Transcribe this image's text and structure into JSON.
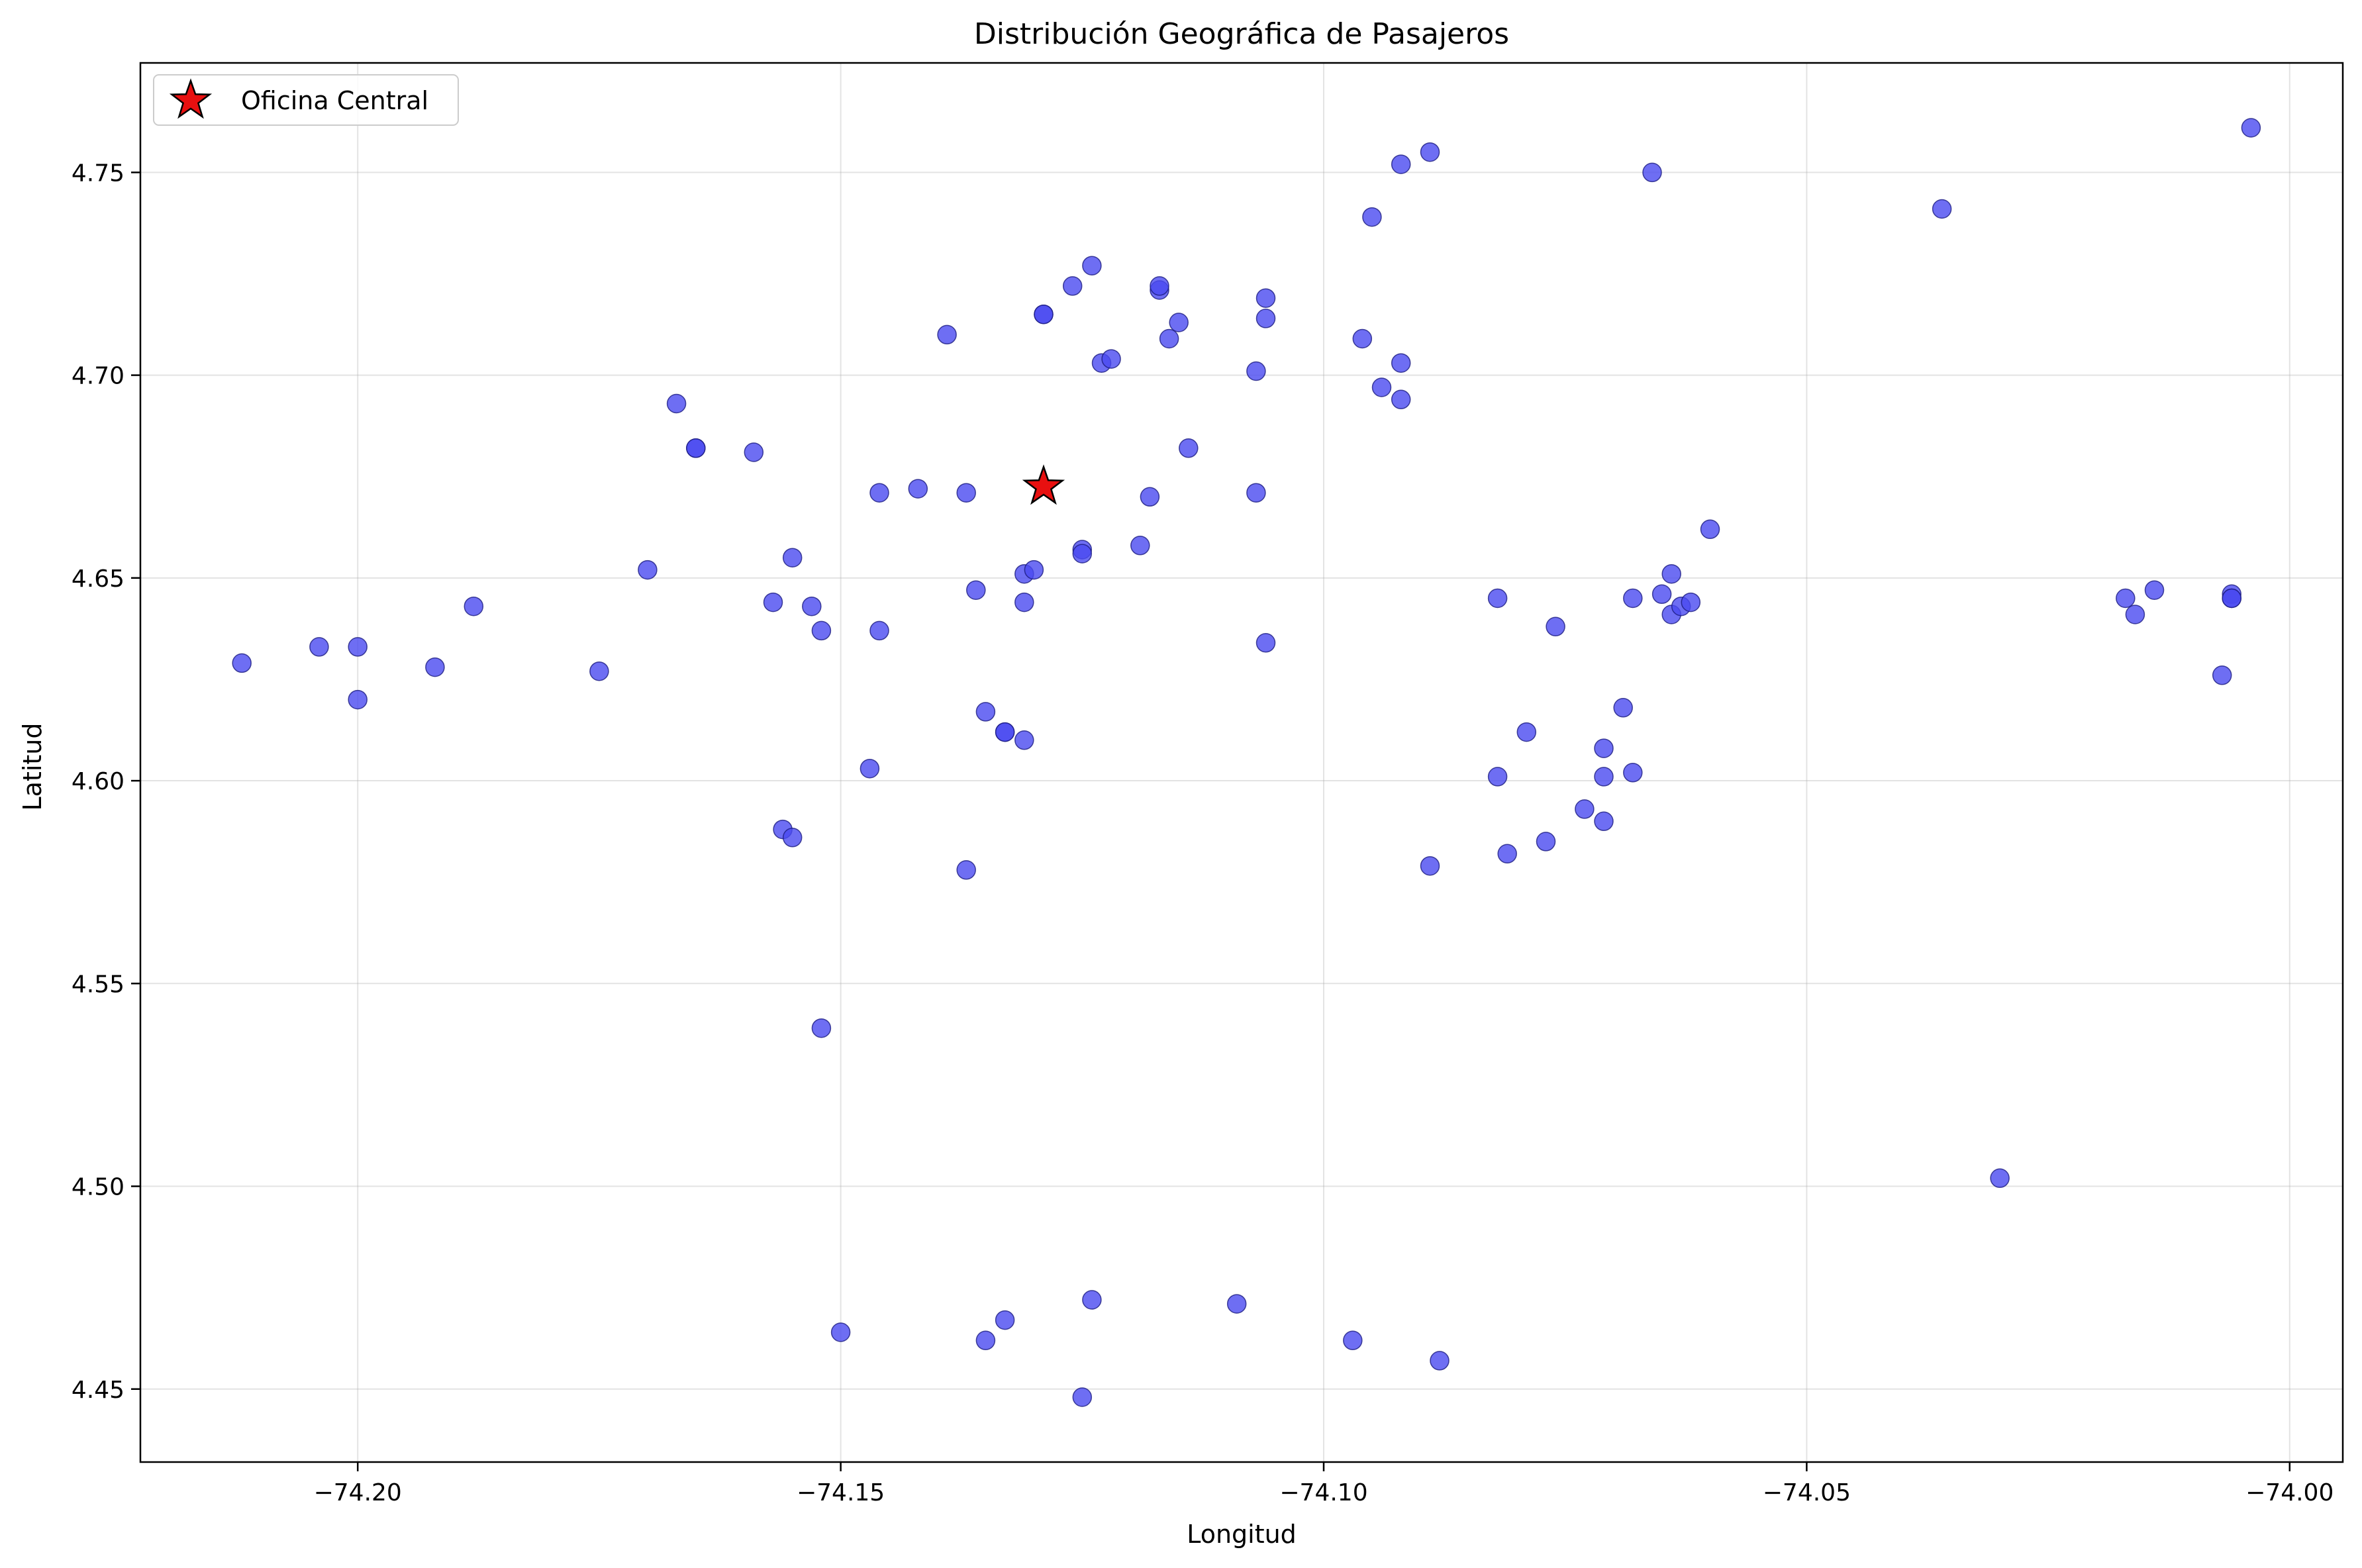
{
  "chart_data": {
    "type": "scatter",
    "title": "Distribución Geográfica de Pasajeros",
    "xlabel": "Longitud",
    "ylabel": "Latitud",
    "xlim": [
      -74.2225,
      -73.9945
    ],
    "ylim": [
      4.432,
      4.777
    ],
    "xticks": [
      -74.2,
      -74.15,
      -74.1,
      -74.05,
      -74.0
    ],
    "xtick_labels": [
      "−74.20",
      "−74.15",
      "−74.10",
      "−74.05",
      "−74.00"
    ],
    "yticks": [
      4.45,
      4.5,
      4.55,
      4.6,
      4.65,
      4.7,
      4.75
    ],
    "ytick_labels": [
      "4.45",
      "4.50",
      "4.55",
      "4.60",
      "4.65",
      "4.70",
      "4.75"
    ],
    "grid": true,
    "legend": {
      "position": "top-left",
      "entries": [
        "Oficina Central"
      ]
    },
    "colors": {
      "passenger": "#4a4af0",
      "passenger_edge": "#1a1a80",
      "office": "#e81010",
      "office_edge": "#000000"
    },
    "office": {
      "name": "Oficina Central",
      "x": -74.129,
      "y": 4.6725,
      "marker": "star"
    },
    "series": [
      {
        "marker": "circle",
        "points": [
          [
            -74.212,
            4.629
          ],
          [
            -74.204,
            4.633
          ],
          [
            -74.2,
            4.633
          ],
          [
            -74.2,
            4.62
          ],
          [
            -74.192,
            4.628
          ],
          [
            -74.188,
            4.643
          ],
          [
            -74.175,
            4.627
          ],
          [
            -74.17,
            4.652
          ],
          [
            -74.167,
            4.693
          ],
          [
            -74.165,
            4.682
          ],
          [
            -74.165,
            4.682
          ],
          [
            -74.159,
            4.681
          ],
          [
            -74.157,
            4.644
          ],
          [
            -74.155,
            4.655
          ],
          [
            -74.153,
            4.643
          ],
          [
            -74.152,
            4.637
          ],
          [
            -74.156,
            4.588
          ],
          [
            -74.155,
            4.586
          ],
          [
            -74.152,
            4.539
          ],
          [
            -74.15,
            4.464
          ],
          [
            -74.146,
            4.671
          ],
          [
            -74.146,
            4.637
          ],
          [
            -74.147,
            4.603
          ],
          [
            -74.142,
            4.672
          ],
          [
            -74.139,
            4.71
          ],
          [
            -74.137,
            4.671
          ],
          [
            -74.136,
            4.647
          ],
          [
            -74.137,
            4.578
          ],
          [
            -74.135,
            4.617
          ],
          [
            -74.133,
            4.612
          ],
          [
            -74.133,
            4.612
          ],
          [
            -74.131,
            4.61
          ],
          [
            -74.131,
            4.644
          ],
          [
            -74.131,
            4.651
          ],
          [
            -74.13,
            4.652
          ],
          [
            -74.129,
            4.715
          ],
          [
            -74.129,
            4.715
          ],
          [
            -74.135,
            4.462
          ],
          [
            -74.133,
            4.467
          ],
          [
            -74.126,
            4.722
          ],
          [
            -74.124,
            4.727
          ],
          [
            -74.125,
            4.657
          ],
          [
            -74.125,
            4.656
          ],
          [
            -74.123,
            4.703
          ],
          [
            -74.122,
            4.704
          ],
          [
            -74.119,
            4.658
          ],
          [
            -74.118,
            4.67
          ],
          [
            -74.117,
            4.721
          ],
          [
            -74.117,
            4.722
          ],
          [
            -74.116,
            4.709
          ],
          [
            -74.115,
            4.713
          ],
          [
            -74.114,
            4.682
          ],
          [
            -74.124,
            4.472
          ],
          [
            -74.125,
            4.448
          ],
          [
            -74.109,
            4.471
          ],
          [
            -74.107,
            4.701
          ],
          [
            -74.107,
            4.671
          ],
          [
            -74.106,
            4.719
          ],
          [
            -74.106,
            4.714
          ],
          [
            -74.106,
            4.634
          ],
          [
            -74.096,
            4.709
          ],
          [
            -74.095,
            4.739
          ],
          [
            -74.094,
            4.697
          ],
          [
            -74.092,
            4.694
          ],
          [
            -74.092,
            4.703
          ],
          [
            -74.092,
            4.752
          ],
          [
            -74.089,
            4.755
          ],
          [
            -74.089,
            4.579
          ],
          [
            -74.097,
            4.462
          ],
          [
            -74.088,
            4.457
          ],
          [
            -74.082,
            4.645
          ],
          [
            -74.082,
            4.601
          ],
          [
            -74.081,
            4.582
          ],
          [
            -74.079,
            4.612
          ],
          [
            -74.077,
            4.585
          ],
          [
            -74.076,
            4.638
          ],
          [
            -74.073,
            4.593
          ],
          [
            -74.071,
            4.608
          ],
          [
            -74.071,
            4.601
          ],
          [
            -74.071,
            4.59
          ],
          [
            -74.069,
            4.618
          ],
          [
            -74.068,
            4.602
          ],
          [
            -74.068,
            4.645
          ],
          [
            -74.066,
            4.75
          ],
          [
            -74.065,
            4.646
          ],
          [
            -74.064,
            4.651
          ],
          [
            -74.064,
            4.641
          ],
          [
            -74.063,
            4.643
          ],
          [
            -74.062,
            4.644
          ],
          [
            -74.06,
            4.662
          ],
          [
            -74.036,
            4.741
          ],
          [
            -74.03,
            4.502
          ],
          [
            -74.017,
            4.645
          ],
          [
            -74.016,
            4.641
          ],
          [
            -74.014,
            4.647
          ],
          [
            -74.006,
            4.646
          ],
          [
            -74.006,
            4.645
          ],
          [
            -74.006,
            4.645
          ],
          [
            -74.007,
            4.626
          ],
          [
            -74.004,
            4.761
          ]
        ]
      }
    ]
  }
}
